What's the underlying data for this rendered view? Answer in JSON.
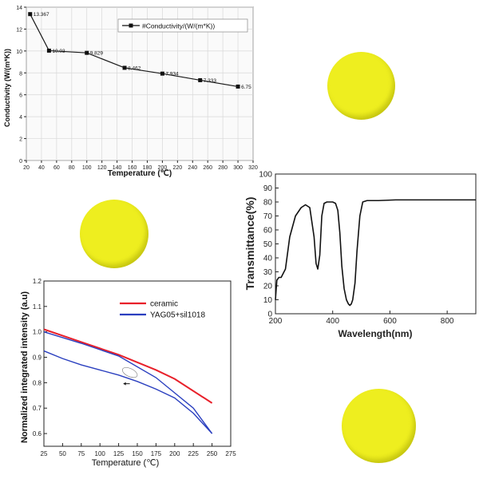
{
  "chart_data": [
    {
      "type": "line",
      "xlabel": "Temperature (℃)",
      "ylabel": "Conductivity (W/(m*K))",
      "xlim": [
        20,
        320
      ],
      "ylim": [
        0,
        14
      ],
      "x_ticks": [
        20,
        40,
        60,
        80,
        100,
        120,
        140,
        160,
        180,
        200,
        220,
        240,
        260,
        280,
        300,
        320
      ],
      "y_ticks": [
        0,
        2,
        4,
        6,
        8,
        10,
        12,
        14
      ],
      "grid": true,
      "legend": "top-right",
      "series": [
        {
          "name": "#Conductivity/(W/(m*K))",
          "x": [
            25,
            50,
            100,
            150,
            200,
            250,
            300
          ],
          "y": [
            13.367,
            10.03,
            9.829,
            8.462,
            7.934,
            7.333,
            6.75
          ],
          "labels": [
            "13.367",
            "10.03",
            "9.829",
            "8.462",
            "7.934",
            "7.333",
            "6.75"
          ]
        }
      ]
    },
    {
      "type": "line",
      "xlabel": "Wavelength(nm)",
      "ylabel": "Transmittance(%)",
      "xlim": [
        200,
        900
      ],
      "ylim": [
        0,
        100
      ],
      "x_ticks": [
        200,
        400,
        600,
        800
      ],
      "y_ticks": [
        0,
        10,
        20,
        30,
        40,
        50,
        60,
        70,
        80,
        90,
        100
      ],
      "grid": false,
      "series": [
        {
          "x": [
            200,
            205,
            212,
            220,
            235,
            250,
            270,
            290,
            305,
            320,
            335,
            342,
            348,
            355,
            362,
            370,
            380,
            390,
            400,
            410,
            418,
            425,
            432,
            440,
            448,
            455,
            460,
            465,
            470,
            478,
            485,
            495,
            505,
            520,
            560,
            620,
            700,
            800,
            900
          ],
          "y": [
            10,
            24,
            26,
            26,
            32,
            55,
            70,
            76,
            78,
            76,
            55,
            36,
            32,
            42,
            70,
            79,
            80,
            80,
            80,
            79,
            74,
            58,
            34,
            18,
            10,
            7,
            6,
            7,
            10,
            22,
            45,
            70,
            80,
            81,
            81,
            81.5,
            81.5,
            81.5,
            81.5
          ]
        }
      ]
    },
    {
      "type": "line",
      "xlabel": "Temperature (℃)",
      "ylabel": "Normalized integrated intensity (a.u)",
      "xlim": [
        25,
        275
      ],
      "ylim": [
        0.55,
        1.2
      ],
      "x_ticks": [
        25,
        50,
        75,
        100,
        125,
        150,
        175,
        200,
        225,
        250,
        275
      ],
      "y_ticks": [
        0.6,
        0.7,
        0.8,
        0.9,
        1.0,
        1.1,
        1.2
      ],
      "grid": false,
      "legend": "top-right",
      "series": [
        {
          "name": "ceramic",
          "color": "#e8202a",
          "x": [
            25,
            75,
            125,
            175,
            200,
            250
          ],
          "y": [
            1.01,
            0.96,
            0.91,
            0.85,
            0.815,
            0.72
          ]
        },
        {
          "name": "YAG05+sil1018",
          "color": "#2a3fbf",
          "x": [
            25,
            75,
            125,
            175,
            200,
            225,
            250
          ],
          "y": [
            1.0,
            0.955,
            0.905,
            0.82,
            0.76,
            0.7,
            0.6
          ]
        },
        {
          "x": [
            25,
            50,
            75,
            100,
            125,
            150,
            175,
            200,
            225,
            250
          ],
          "y": [
            0.925,
            0.895,
            0.87,
            0.85,
            0.83,
            0.805,
            0.775,
            0.74,
            0.68,
            0.6
          ],
          "color": "#2a3fbf"
        }
      ],
      "annotations": [
        {
          "type": "arrow",
          "x": 140,
          "y": 0.84,
          "dx": -8
        }
      ]
    }
  ],
  "colors": {
    "disc": "#eeee1f",
    "disc_shade": "#c9c90e",
    "gridline": "#d8d8d8",
    "chart1_line": "#1a1a1a"
  }
}
